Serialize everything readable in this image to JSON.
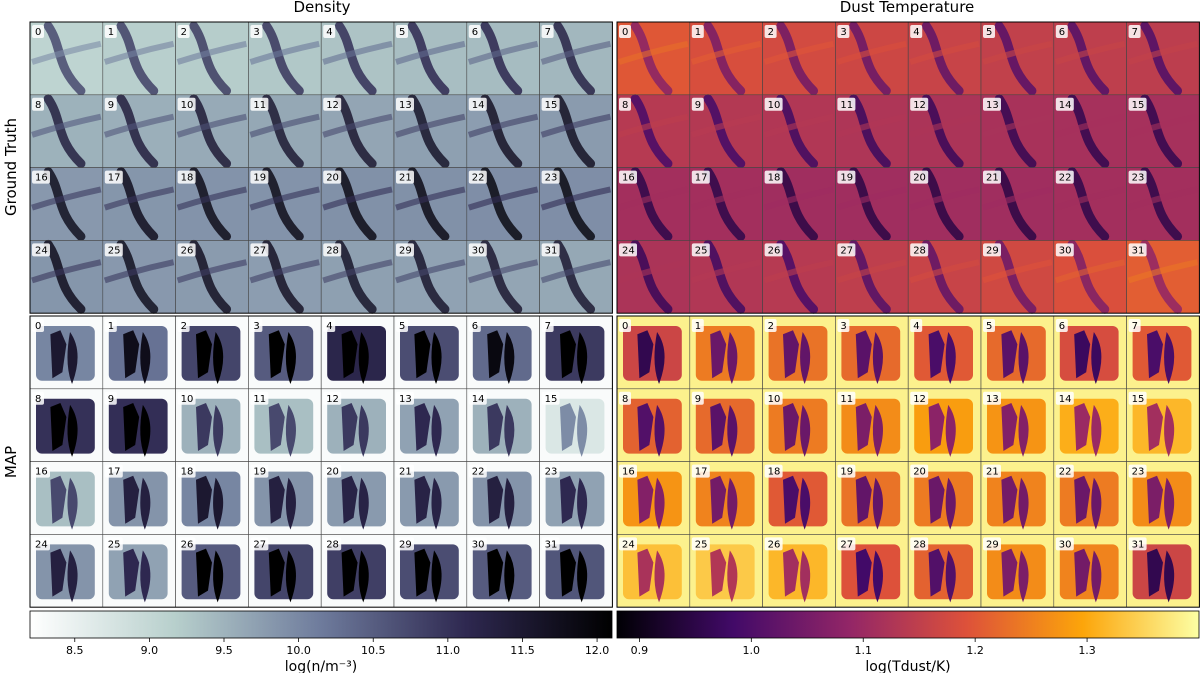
{
  "figure": {
    "column_titles": [
      "Density",
      "Dust Temperature"
    ],
    "row_labels": [
      "Ground Truth",
      "MAP"
    ]
  },
  "chart_data": {
    "type": "heatmap",
    "panels": [
      {
        "name": "Density",
        "colormap": "bone_r",
        "colormap_colors": [
          "#ffffff",
          "#b7cfcc",
          "#6e7b9c",
          "#2e2850",
          "#000000"
        ],
        "colorbar": {
          "label": "log(n/m⁻³)",
          "range": [
            8.2,
            12.1
          ],
          "ticks": [
            8.5,
            9.0,
            9.5,
            10.0,
            10.5,
            11.0,
            11.5,
            12.0
          ],
          "tick_labels": [
            "8.5",
            "9.0",
            "9.5",
            "10.0",
            "10.5",
            "11.0",
            "11.5",
            "12.0"
          ]
        }
      },
      {
        "name": "Dust Temperature",
        "colormap": "inferno",
        "colormap_colors": [
          "#000004",
          "#420a68",
          "#932667",
          "#dd513a",
          "#fca50a",
          "#fcffa4"
        ],
        "colorbar": {
          "label": "log(T_dust/K)",
          "label_plain": "log(Tdust/K)",
          "range": [
            0.88,
            1.4
          ],
          "ticks": [
            0.9,
            1.0,
            1.1,
            1.2,
            1.3
          ],
          "tick_labels": [
            "0.9",
            "1.0",
            "1.1",
            "1.2",
            "1.3"
          ]
        }
      }
    ],
    "cell_labels": [
      "0",
      "1",
      "2",
      "3",
      "4",
      "5",
      "6",
      "7",
      "8",
      "9",
      "10",
      "11",
      "12",
      "13",
      "14",
      "15",
      "16",
      "17",
      "18",
      "19",
      "20",
      "21",
      "22",
      "23",
      "24",
      "25",
      "26",
      "27",
      "28",
      "29",
      "30",
      "31"
    ],
    "ground_truth_density_level": [
      0.3,
      0.33,
      0.34,
      0.36,
      0.38,
      0.4,
      0.41,
      0.43,
      0.45,
      0.46,
      0.48,
      0.49,
      0.5,
      0.52,
      0.53,
      0.54,
      0.55,
      0.56,
      0.57,
      0.57,
      0.58,
      0.58,
      0.59,
      0.59,
      0.56,
      0.55,
      0.54,
      0.53,
      0.52,
      0.51,
      0.5,
      0.49
    ],
    "ground_truth_temperature_level": [
      0.82,
      0.78,
      0.76,
      0.74,
      0.72,
      0.7,
      0.69,
      0.68,
      0.66,
      0.65,
      0.64,
      0.63,
      0.62,
      0.61,
      0.6,
      0.6,
      0.59,
      0.59,
      0.58,
      0.58,
      0.58,
      0.58,
      0.59,
      0.59,
      0.62,
      0.64,
      0.66,
      0.69,
      0.72,
      0.75,
      0.79,
      0.84
    ],
    "map_density_level": [
      0.55,
      0.62,
      0.78,
      0.7,
      0.9,
      0.75,
      0.65,
      0.82,
      0.85,
      0.86,
      0.4,
      0.35,
      0.4,
      0.45,
      0.4,
      0.15,
      0.35,
      0.5,
      0.55,
      0.5,
      0.48,
      0.48,
      0.5,
      0.45,
      0.5,
      0.45,
      0.7,
      0.78,
      0.8,
      0.75,
      0.7,
      0.72
    ],
    "map_temperature_level": [
      0.55,
      0.7,
      0.68,
      0.66,
      0.62,
      0.66,
      0.58,
      0.62,
      0.64,
      0.66,
      0.7,
      0.74,
      0.78,
      0.76,
      0.82,
      0.84,
      0.76,
      0.72,
      0.62,
      0.68,
      0.7,
      0.72,
      0.7,
      0.74,
      0.86,
      0.88,
      0.84,
      0.6,
      0.64,
      0.74,
      0.72,
      0.55
    ]
  }
}
